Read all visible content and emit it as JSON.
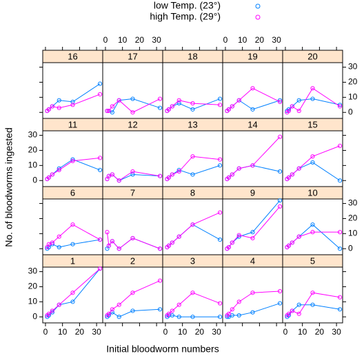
{
  "chart_data": {
    "type": "line",
    "x_label": "Initial bloodworm numbers",
    "y_label": "No. of bloodworms ingested",
    "series": [
      {
        "name": "low Temp. (23°)",
        "color": "#0080ff"
      },
      {
        "name": "high Temp. (29°)",
        "color": "#ff00ff"
      }
    ],
    "x": [
      1,
      2,
      4,
      8,
      16,
      32
    ],
    "xlim": [
      -1.6,
      33.6
    ],
    "xticks": [
      0,
      10,
      20,
      30
    ],
    "ylim": [
      -4,
      33
    ],
    "yticks": [
      0,
      10,
      20,
      30
    ],
    "panels": [
      {
        "title": "1",
        "values": [
          [
            0,
            1,
            3,
            8,
            10,
            32
          ],
          [
            1,
            2,
            4,
            8,
            16,
            32
          ]
        ]
      },
      {
        "title": "2",
        "values": [
          [
            0,
            1,
            3,
            0,
            4,
            5
          ],
          [
            1,
            2,
            5,
            8,
            16,
            24
          ]
        ]
      },
      {
        "title": "3",
        "values": [
          [
            0,
            1,
            1,
            0,
            0,
            0
          ],
          [
            1,
            2,
            4,
            8,
            16,
            9
          ]
        ]
      },
      {
        "title": "4",
        "values": [
          [
            0,
            0,
            1,
            1,
            3,
            9
          ],
          [
            1,
            2,
            5,
            10,
            16,
            17
          ]
        ]
      },
      {
        "title": "5",
        "values": [
          [
            0,
            1,
            4,
            8,
            8,
            5
          ],
          [
            1,
            2,
            4,
            2,
            16,
            13
          ]
        ]
      },
      {
        "title": "6",
        "values": [
          [
            0,
            1,
            3,
            1,
            3,
            6
          ],
          [
            1,
            3,
            4,
            8,
            16,
            6
          ]
        ]
      },
      {
        "title": "7",
        "values": [
          [
            0,
            2,
            5,
            0,
            7,
            0
          ],
          [
            11,
            2,
            5,
            0,
            7,
            0
          ]
        ]
      },
      {
        "title": "8",
        "values": [
          [
            1,
            2,
            4,
            8,
            16,
            6
          ],
          [
            1,
            2,
            4,
            8,
            16,
            24
          ]
        ]
      },
      {
        "title": "9",
        "values": [
          [
            0,
            1,
            4,
            8,
            11,
            32
          ],
          [
            0,
            1,
            4,
            9,
            7,
            28
          ]
        ]
      },
      {
        "title": "10",
        "values": [
          [
            1,
            2,
            4,
            8,
            16,
            0
          ],
          [
            1,
            2,
            4,
            8,
            11,
            11
          ]
        ]
      },
      {
        "title": "11",
        "values": [
          [
            1,
            2,
            4,
            8,
            14,
            7
          ],
          [
            1,
            2,
            4,
            7,
            13,
            15
          ]
        ]
      },
      {
        "title": "12",
        "values": [
          [
            1,
            3,
            4,
            0,
            4,
            3
          ],
          [
            1,
            3,
            4,
            0,
            6,
            3
          ]
        ]
      },
      {
        "title": "13",
        "values": [
          [
            1,
            2,
            4,
            7,
            4,
            10
          ],
          [
            1,
            2,
            4,
            6,
            16,
            14
          ]
        ]
      },
      {
        "title": "14",
        "values": [
          [
            1,
            2,
            4,
            8,
            10,
            6
          ],
          [
            1,
            2,
            4,
            8,
            10,
            29
          ]
        ]
      },
      {
        "title": "15",
        "values": [
          [
            1,
            2,
            4,
            8,
            12,
            0
          ],
          [
            1,
            2,
            4,
            8,
            16,
            23
          ]
        ]
      },
      {
        "title": "16",
        "values": [
          [
            1,
            2,
            4,
            8,
            7,
            19
          ],
          [
            1,
            2,
            4,
            3,
            5,
            12
          ]
        ]
      },
      {
        "title": "17",
        "values": [
          [
            1,
            1,
            0,
            8,
            9,
            3
          ],
          [
            1,
            1,
            4,
            8,
            0,
            9
          ]
        ]
      },
      {
        "title": "18",
        "values": [
          [
            1,
            2,
            4,
            6,
            2,
            9
          ],
          [
            1,
            2,
            4,
            8,
            6,
            5
          ]
        ]
      },
      {
        "title": "19",
        "values": [
          [
            1,
            2,
            4,
            8,
            2,
            8
          ],
          [
            1,
            2,
            4,
            8,
            16,
            7
          ]
        ]
      },
      {
        "title": "20",
        "values": [
          [
            1,
            2,
            4,
            8,
            9,
            5
          ],
          [
            0,
            1,
            4,
            1,
            16,
            4
          ]
        ]
      }
    ]
  }
}
